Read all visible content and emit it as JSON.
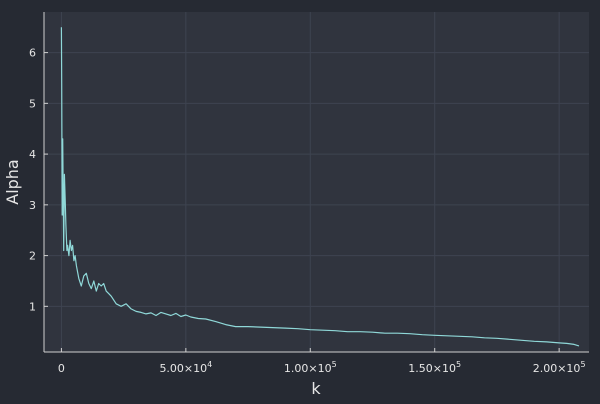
{
  "chart_data": {
    "type": "line",
    "xlabel": "k",
    "ylabel": "Alpha",
    "xlim": [
      -7000,
      212000
    ],
    "ylim": [
      0.1,
      6.8
    ],
    "x_ticks": [
      0,
      50000,
      100000,
      150000,
      200000
    ],
    "x_tick_mantissas": [
      "0",
      "5.00",
      "1.00",
      "1.50",
      "2.00"
    ],
    "x_tick_exponents": [
      "",
      "4",
      "5",
      "5",
      "5"
    ],
    "y_ticks": [
      1,
      2,
      3,
      4,
      5,
      6
    ],
    "y_tick_labels": [
      "1",
      "2",
      "3",
      "4",
      "5",
      "6"
    ],
    "grid": true,
    "legend": "none",
    "line_color": "#8fd8d8",
    "series": [
      {
        "x": [
          0,
          100,
          300,
          500,
          900,
          1200,
          1500,
          1800,
          2200,
          2500,
          3000,
          3500,
          4000,
          4500,
          5000,
          5500,
          6000,
          7000,
          8000,
          9000,
          10000,
          11000,
          12000,
          13000,
          14000,
          15000,
          16000,
          17000,
          18000,
          19000,
          20000,
          22000,
          24000,
          26000,
          28000,
          30000,
          32000,
          34000,
          36000,
          38000,
          40000,
          42000,
          44000,
          46000,
          48000,
          50000,
          52000,
          55000,
          58000,
          62000,
          66000,
          70000,
          75000,
          80000,
          85000,
          90000,
          95000,
          100000,
          105000,
          110000,
          115000,
          120000,
          125000,
          130000,
          135000,
          140000,
          145000,
          150000,
          155000,
          160000,
          165000,
          170000,
          175000,
          180000,
          185000,
          190000,
          195000,
          200000,
          203000,
          206000,
          208000
        ],
        "y": [
          6.5,
          5.4,
          2.8,
          4.3,
          2.1,
          3.6,
          3.1,
          2.6,
          2.1,
          2.2,
          2.0,
          2.3,
          2.1,
          2.2,
          1.9,
          2.0,
          1.8,
          1.55,
          1.4,
          1.6,
          1.65,
          1.45,
          1.35,
          1.5,
          1.3,
          1.45,
          1.4,
          1.45,
          1.3,
          1.25,
          1.2,
          1.05,
          1.0,
          1.05,
          0.95,
          0.9,
          0.88,
          0.85,
          0.87,
          0.82,
          0.88,
          0.85,
          0.82,
          0.86,
          0.8,
          0.83,
          0.79,
          0.76,
          0.75,
          0.7,
          0.64,
          0.6,
          0.6,
          0.59,
          0.58,
          0.57,
          0.56,
          0.54,
          0.53,
          0.52,
          0.5,
          0.5,
          0.49,
          0.47,
          0.47,
          0.46,
          0.44,
          0.43,
          0.42,
          0.41,
          0.4,
          0.38,
          0.37,
          0.35,
          0.33,
          0.31,
          0.3,
          0.28,
          0.27,
          0.25,
          0.22
        ]
      }
    ]
  }
}
